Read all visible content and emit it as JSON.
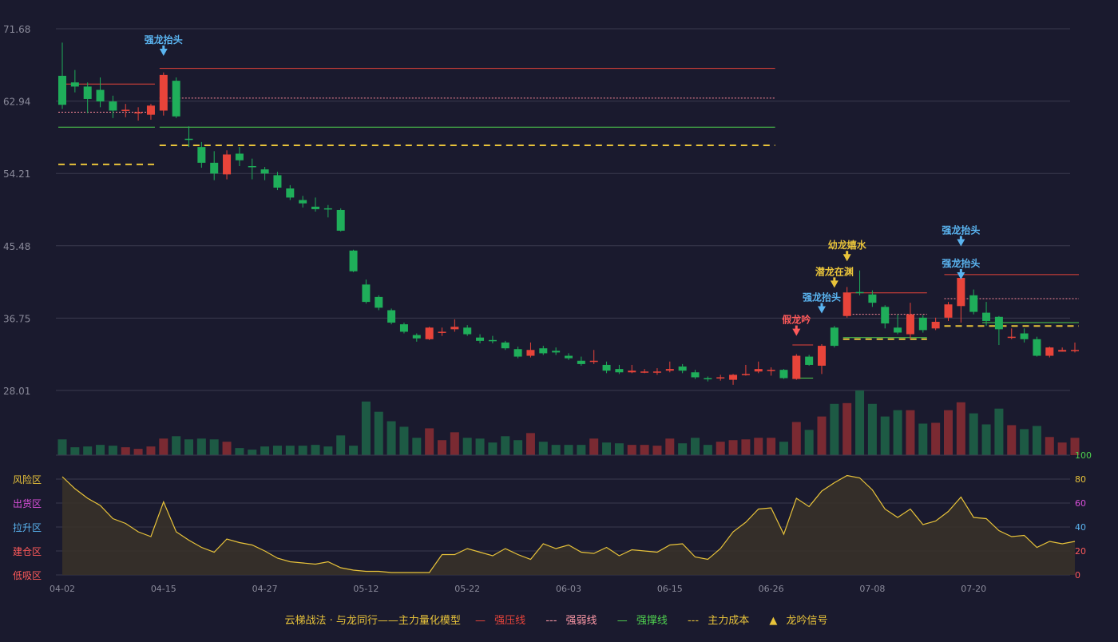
{
  "colors": {
    "bg": "#1a1a2e",
    "up": "#e8443a",
    "down": "#1fae5a",
    "gold": "#e8c33a",
    "blue": "#5ab4f0",
    "grid": "#3a3a4e",
    "axis": "#8a8a9a",
    "vol_up": "#7a2a32",
    "vol_down": "#1d5a44",
    "magenta": "#d94fd9",
    "green_line": "#4fd24f"
  },
  "chart_data": {
    "type": "candlestick",
    "x_ticks": [
      "04-02",
      "04-15",
      "04-27",
      "05-12",
      "05-22",
      "06-03",
      "06-15",
      "06-26",
      "07-08",
      "07-20"
    ],
    "y_ticks": [
      "71.68",
      "62.94",
      "54.21",
      "45.48",
      "36.75",
      "28.01"
    ],
    "ylim": [
      28.01,
      71.68
    ],
    "candles": [
      [
        66.0,
        62.5,
        70.0,
        62.0
      ],
      [
        65.2,
        64.7,
        66.7,
        64.0
      ],
      [
        64.7,
        63.2,
        65.2,
        61.5
      ],
      [
        64.3,
        62.9,
        65.8,
        62.2
      ],
      [
        62.9,
        61.8,
        63.6,
        60.9
      ],
      [
        61.9,
        61.9,
        62.6,
        61.0
      ],
      [
        61.6,
        61.6,
        62.2,
        60.6
      ],
      [
        61.3,
        62.4,
        62.6,
        60.7
      ],
      [
        61.8,
        66.1,
        66.4,
        61.2
      ],
      [
        65.4,
        61.1,
        65.8,
        60.9
      ],
      [
        58.4,
        58.3,
        59.9,
        57.4
      ],
      [
        57.4,
        55.5,
        58.0,
        54.9
      ],
      [
        55.5,
        54.2,
        56.9,
        53.4
      ],
      [
        54.1,
        56.5,
        57.0,
        53.5
      ],
      [
        56.6,
        55.8,
        57.4,
        55.1
      ],
      [
        55.1,
        55.0,
        56.0,
        53.5
      ],
      [
        54.7,
        54.2,
        55.0,
        53.4
      ],
      [
        54.0,
        52.5,
        54.4,
        52.2
      ],
      [
        52.4,
        51.3,
        52.8,
        51.0
      ],
      [
        51.0,
        50.6,
        51.5,
        50.1
      ],
      [
        50.2,
        49.9,
        51.3,
        49.6
      ],
      [
        50.0,
        49.9,
        50.4,
        48.9
      ],
      [
        49.8,
        47.3,
        50.0,
        47.2
      ],
      [
        44.9,
        42.4,
        45.0,
        42.3
      ],
      [
        40.8,
        38.7,
        41.4,
        38.5
      ],
      [
        39.3,
        38.0,
        39.5,
        37.7
      ],
      [
        37.7,
        36.2,
        37.9,
        36.0
      ],
      [
        36.0,
        35.1,
        36.2,
        34.9
      ],
      [
        34.7,
        34.3,
        34.9,
        33.9
      ],
      [
        34.2,
        35.6,
        35.7,
        34.1
      ],
      [
        35.1,
        35.1,
        35.6,
        34.6
      ],
      [
        35.4,
        35.7,
        36.6,
        35.1
      ],
      [
        35.6,
        34.8,
        35.9,
        34.6
      ],
      [
        34.4,
        34.0,
        34.8,
        33.7
      ],
      [
        34.1,
        34.0,
        34.6,
        33.7
      ],
      [
        33.8,
        33.1,
        34.0,
        32.9
      ],
      [
        33.0,
        32.1,
        33.3,
        31.9
      ],
      [
        32.2,
        32.9,
        33.8,
        32.0
      ],
      [
        33.1,
        32.5,
        33.4,
        32.3
      ],
      [
        32.8,
        32.6,
        33.2,
        32.3
      ],
      [
        32.2,
        31.9,
        32.5,
        31.7
      ],
      [
        31.6,
        31.2,
        32.1,
        31.0
      ],
      [
        31.6,
        31.6,
        32.9,
        31.2
      ],
      [
        31.1,
        30.4,
        31.5,
        30.1
      ],
      [
        30.6,
        30.2,
        31.1,
        30.0
      ],
      [
        30.2,
        30.4,
        31.1,
        30.1
      ],
      [
        30.3,
        30.3,
        30.6,
        30.1
      ],
      [
        30.3,
        30.3,
        30.7,
        29.9
      ],
      [
        30.4,
        30.6,
        31.5,
        30.2
      ],
      [
        30.9,
        30.4,
        31.2,
        30.1
      ],
      [
        30.2,
        29.6,
        30.5,
        29.4
      ],
      [
        29.5,
        29.4,
        29.7,
        29.1
      ],
      [
        29.5,
        29.6,
        29.9,
        29.2
      ],
      [
        29.3,
        29.9,
        30.0,
        28.7
      ],
      [
        29.9,
        30.0,
        31.1,
        29.8
      ],
      [
        30.3,
        30.6,
        31.5,
        30.1
      ],
      [
        30.5,
        30.5,
        30.8,
        29.8
      ],
      [
        30.5,
        29.5,
        30.6,
        29.4
      ],
      [
        29.4,
        32.2,
        32.4,
        29.3
      ],
      [
        32.1,
        31.1,
        32.3,
        31.0
      ],
      [
        31.0,
        33.4,
        33.6,
        30.0
      ],
      [
        35.6,
        33.4,
        35.8,
        33.2
      ],
      [
        37.0,
        39.8,
        40.5,
        36.8
      ],
      [
        39.9,
        39.8,
        42.5,
        39.5
      ],
      [
        39.6,
        38.6,
        40.1,
        38.1
      ],
      [
        38.1,
        36.1,
        38.3,
        35.5
      ],
      [
        35.6,
        35.0,
        37.2,
        34.8
      ],
      [
        34.8,
        37.2,
        38.6,
        34.2
      ],
      [
        36.8,
        35.3,
        37.1,
        35.0
      ],
      [
        35.5,
        36.3,
        36.8,
        35.3
      ],
      [
        36.8,
        38.4,
        38.7,
        36.4
      ],
      [
        38.2,
        41.6,
        41.8,
        36.2
      ],
      [
        39.5,
        37.5,
        40.2,
        37.2
      ],
      [
        37.4,
        36.4,
        38.7,
        35.8
      ],
      [
        36.9,
        35.4,
        37.0,
        33.5
      ],
      [
        34.5,
        34.5,
        35.5,
        34.2
      ],
      [
        34.9,
        34.2,
        35.5,
        33.8
      ],
      [
        34.2,
        32.2,
        34.5,
        32.1
      ],
      [
        32.2,
        33.2,
        33.3,
        32.0
      ],
      [
        32.7,
        32.9,
        33.2,
        32.7
      ],
      [
        32.8,
        32.9,
        33.8,
        32.6
      ]
    ],
    "volume": [
      20,
      10,
      11,
      13,
      12,
      10,
      8,
      11,
      21,
      24,
      20,
      21,
      20,
      17,
      9,
      7,
      11,
      12,
      12,
      12,
      13,
      11,
      25,
      12,
      68,
      55,
      43,
      36,
      22,
      34,
      19,
      29,
      22,
      21,
      16,
      24,
      19,
      28,
      17,
      13,
      13,
      13,
      21,
      16,
      15,
      13,
      13,
      12,
      21,
      15,
      22,
      13,
      17,
      19,
      20,
      22,
      22,
      17,
      42,
      32,
      49,
      65,
      66,
      82,
      65,
      49,
      57,
      57,
      40,
      41,
      57,
      67,
      53,
      39,
      59,
      38,
      33,
      37,
      23,
      16,
      22
    ],
    "heat": [
      82,
      72,
      64,
      58,
      47,
      43,
      36,
      32,
      61,
      36,
      29,
      23,
      19,
      30,
      27,
      25,
      20,
      14,
      11,
      10,
      9,
      11,
      6,
      4,
      3,
      3,
      2,
      2,
      2,
      2,
      17,
      17,
      22,
      19,
      16,
      22,
      17,
      13,
      26,
      22,
      25,
      19,
      18,
      23,
      16,
      21,
      20,
      19,
      25,
      26,
      15,
      13,
      22,
      36,
      44,
      55,
      56,
      34,
      64,
      57,
      70,
      77,
      83,
      81,
      71,
      55,
      48,
      55,
      42,
      45,
      53,
      65,
      48,
      47,
      37,
      32,
      33,
      23,
      28,
      26,
      28
    ],
    "heat_y_ticks": [
      "0",
      "20",
      "40",
      "60",
      "80",
      "100"
    ],
    "heat_zones": [
      "低吸区",
      "建仓区",
      "拉升区",
      "出货区",
      "风险区"
    ],
    "segments": [
      {
        "x1": 0,
        "x2": 7,
        "y": 65.0,
        "kind": "press"
      },
      {
        "x1": 0,
        "x2": 7,
        "y": 61.6,
        "kind": "weak"
      },
      {
        "x1": 0,
        "x2": 7,
        "y": 59.8,
        "kind": "support"
      },
      {
        "x1": 0,
        "x2": 7,
        "y": 55.3,
        "kind": "cost"
      },
      {
        "x1": 8,
        "x2": 56,
        "y": 66.9,
        "kind": "press"
      },
      {
        "x1": 8,
        "x2": 56,
        "y": 63.3,
        "kind": "weak"
      },
      {
        "x1": 8,
        "x2": 56,
        "y": 59.8,
        "kind": "support"
      },
      {
        "x1": 8,
        "x2": 56,
        "y": 57.6,
        "kind": "cost"
      },
      {
        "x1": 58,
        "x2": 59,
        "y": 33.5,
        "kind": "press"
      },
      {
        "x1": 58,
        "x2": 59,
        "y": 29.5,
        "kind": "support"
      },
      {
        "x1": 62,
        "x2": 68,
        "y": 39.8,
        "kind": "press"
      },
      {
        "x1": 62,
        "x2": 68,
        "y": 37.2,
        "kind": "weak"
      },
      {
        "x1": 62,
        "x2": 68,
        "y": 34.4,
        "kind": "support"
      },
      {
        "x1": 62,
        "x2": 68,
        "y": 34.2,
        "kind": "cost"
      },
      {
        "x1": 70,
        "x2": 80,
        "y": 42.0,
        "kind": "press"
      },
      {
        "x1": 70,
        "x2": 80,
        "y": 39.1,
        "kind": "weak"
      },
      {
        "x1": 73,
        "x2": 80,
        "y": 36.2,
        "kind": "support"
      },
      {
        "x1": 70,
        "x2": 80,
        "y": 35.8,
        "kind": "cost"
      }
    ],
    "signals": [
      {
        "index": 8,
        "label": "强龙抬头",
        "color": "blue",
        "y": 68.6
      },
      {
        "index": 58,
        "label": "假龙吟",
        "color": "red",
        "y": 34.8
      },
      {
        "index": 60,
        "label": "强龙抬头",
        "color": "blue",
        "y": 37.5
      },
      {
        "index": 61,
        "label": "潜龙在渊",
        "color": "gold",
        "y": 40.6
      },
      {
        "index": 62,
        "label": "幼龙嬉水",
        "color": "gold",
        "y": 43.8
      },
      {
        "index": 71,
        "label": "强龙抬头",
        "color": "blue",
        "y": 41.6
      },
      {
        "index": 71,
        "label": "强龙抬头",
        "color": "blue",
        "y": 45.6
      }
    ]
  },
  "legend": {
    "title": "云梯战法 · 与龙同行——主力量化模型",
    "items": [
      {
        "key": "press",
        "label": "强压线"
      },
      {
        "key": "weak",
        "label": "强弱线"
      },
      {
        "key": "support",
        "label": "强撑线"
      },
      {
        "key": "cost",
        "label": "主力成本"
      },
      {
        "key": "signal",
        "label": "龙吟信号"
      }
    ]
  }
}
